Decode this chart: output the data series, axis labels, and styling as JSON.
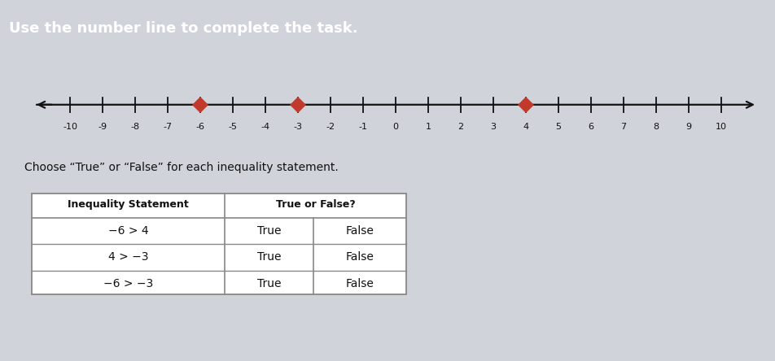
{
  "title": "Use the number line to complete the task.",
  "title_bg": "#1e3a70",
  "title_color": "#ffffff",
  "outer_bg": "#d0d3da",
  "content_bg": "#f5f6f8",
  "number_line_min": -10,
  "number_line_max": 10,
  "marked_points": [
    -6,
    -3,
    4
  ],
  "marker_color": "#c0392b",
  "subtitle": "Choose “True” or “False” for each inequality statement.",
  "subtitle_color": "#111111",
  "table_header_col1": "Inequality Statement",
  "table_header_col2": "True or False?",
  "table_rows": [
    [
      "−6 > 4",
      "True",
      "False"
    ],
    [
      "4 > −3",
      "True",
      "False"
    ],
    [
      "−6 > −3",
      "True",
      "False"
    ]
  ],
  "line_color": "#111111",
  "tick_color": "#111111",
  "table_border_color": "#888888"
}
